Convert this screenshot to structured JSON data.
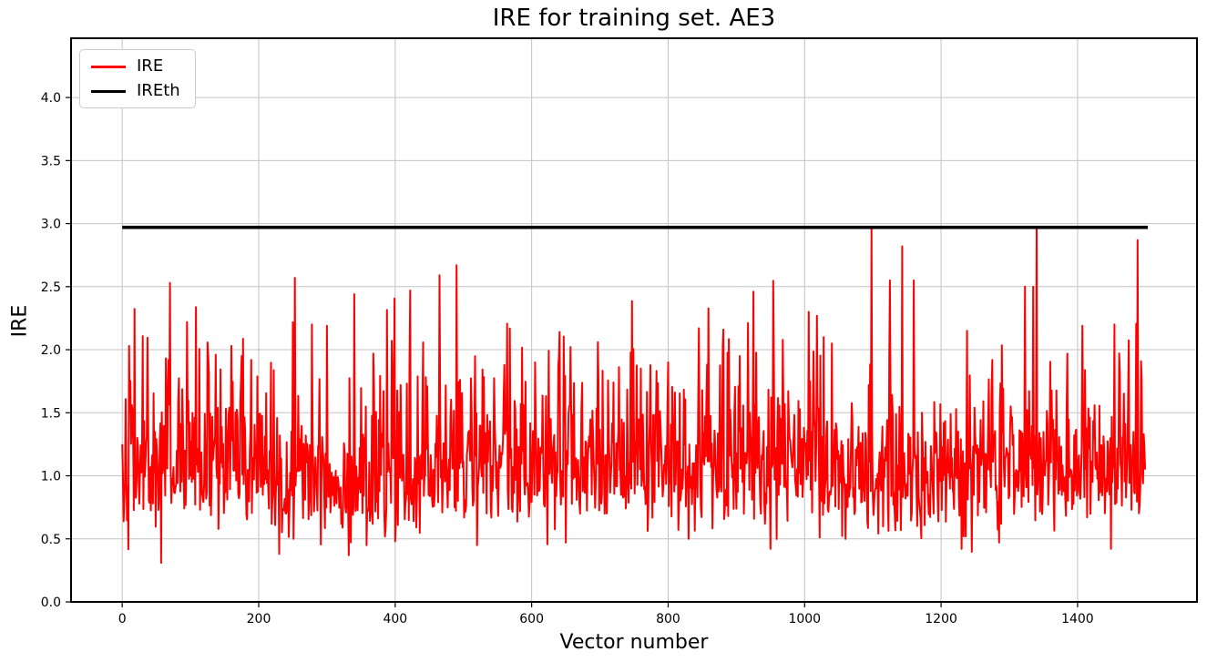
{
  "page": {
    "background": "#ffffff"
  },
  "chart_data": {
    "type": "line",
    "title": "IRE for training set. AE3",
    "xlabel": "Vector number",
    "ylabel": "IRE",
    "xlim": [
      -75,
      1575
    ],
    "ylim": [
      0,
      4.47
    ],
    "x_ticks": [
      0,
      200,
      400,
      600,
      800,
      1000,
      1200,
      1400
    ],
    "y_ticks": [
      0.0,
      0.5,
      1.0,
      1.5,
      2.0,
      2.5,
      3.0,
      3.5,
      4.0
    ],
    "y_tick_labels": [
      "0.0",
      "0.5",
      "1.0",
      "1.5",
      "2.0",
      "2.5",
      "3.0",
      "3.5",
      "4.0"
    ],
    "grid": true,
    "grid_color": "#c3c3c3",
    "spine_color": "#000000",
    "tick_color": "#000000",
    "legend": {
      "position": "upper-left",
      "entries": [
        {
          "label": "IRE",
          "color": "#ff0000"
        },
        {
          "label": "IREth",
          "color": "#000000"
        }
      ]
    },
    "threshold_value": 2.97,
    "series": [
      {
        "name": "IRE",
        "color": "#ff0000",
        "line_width": 2,
        "type": "noisy",
        "n_points": 1500,
        "x_start": 0,
        "generator": {
          "seed": 42,
          "median": 1.07,
          "sigma": 0.3,
          "clamp_min": 0.3,
          "clamp_max": 2.97
        },
        "forced_points": [
          [
            0,
            1.25
          ],
          [
            10,
            2.03
          ],
          [
            57,
            0.31
          ],
          [
            70,
            2.53
          ],
          [
            95,
            2.22
          ],
          [
            160,
            2.03
          ],
          [
            175,
            1.95
          ],
          [
            230,
            0.38
          ],
          [
            253,
            2.57
          ],
          [
            278,
            2.2
          ],
          [
            300,
            2.19
          ],
          [
            332,
            0.37
          ],
          [
            340,
            2.44
          ],
          [
            358,
            0.45
          ],
          [
            368,
            1.97
          ],
          [
            395,
            2.07
          ],
          [
            400,
            0.48
          ],
          [
            422,
            2.47
          ],
          [
            465,
            2.59
          ],
          [
            490,
            2.67
          ],
          [
            520,
            0.45
          ],
          [
            560,
            1.88
          ],
          [
            605,
            1.9
          ],
          [
            640,
            1.95
          ],
          [
            650,
            0.47
          ],
          [
            697,
            2.06
          ],
          [
            760,
            1.85
          ],
          [
            800,
            1.9
          ],
          [
            830,
            0.5
          ],
          [
            845,
            2.17
          ],
          [
            881,
            2.16
          ],
          [
            905,
            1.95
          ],
          [
            925,
            2.46
          ],
          [
            950,
            0.42
          ],
          [
            1006,
            2.3
          ],
          [
            1018,
            2.27
          ],
          [
            1040,
            2.05
          ],
          [
            1060,
            0.5
          ],
          [
            1098,
            2.97
          ],
          [
            1125,
            2.55
          ],
          [
            1143,
            2.82
          ],
          [
            1160,
            2.55
          ],
          [
            1230,
            0.42
          ],
          [
            1238,
            2.15
          ],
          [
            1285,
            0.47
          ],
          [
            1323,
            2.5
          ],
          [
            1335,
            2.5
          ],
          [
            1407,
            2.19
          ],
          [
            1449,
            0.42
          ],
          [
            1454,
            2.2
          ],
          [
            1488,
            2.87
          ],
          [
            1499,
            1.05
          ]
        ]
      },
      {
        "name": "IREth",
        "color": "#000000",
        "line_width": 3.6,
        "type": "hline",
        "value": 2.97,
        "x_range": [
          0,
          1503
        ]
      }
    ],
    "summary": {
      "n_points": 1500,
      "baseline_mean": 1.15,
      "min": 0.3,
      "max": 2.97
    }
  }
}
